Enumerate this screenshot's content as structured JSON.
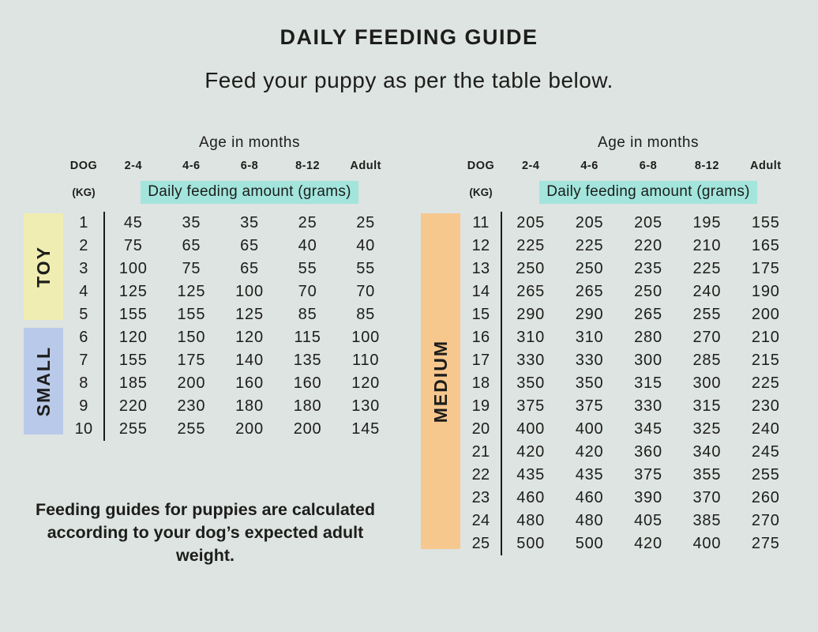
{
  "page": {
    "title": "DAILY FEEDING GUIDE",
    "subtitle": "Feed your puppy as per the table below.",
    "footnote": "Feeding guides for puppies are calculated according to your dog’s expected adult weight."
  },
  "colors": {
    "background": "#dde4e1",
    "amount_highlight": "#a3e5dc",
    "toy_yellow": "#f0edb2",
    "small_blue": "#b9c9e9",
    "medium_orange": "#f7c88e",
    "text": "#1d1d1b"
  },
  "chart_data": [
    {
      "type": "table",
      "age_header": "Age in months",
      "dog_label": "DOG",
      "kg_label": "(KG)",
      "age_columns": [
        "2-4",
        "4-6",
        "6-8",
        "8-12",
        "Adult"
      ],
      "amount_label": "Daily feeding amount (grams)",
      "groups": [
        {
          "label": "TOY",
          "color": "#f0edb2",
          "rows": [
            {
              "kg": 1,
              "values": [
                45,
                35,
                35,
                25,
                25
              ]
            },
            {
              "kg": 2,
              "values": [
                75,
                65,
                65,
                40,
                40
              ]
            },
            {
              "kg": 3,
              "values": [
                100,
                75,
                65,
                55,
                55
              ]
            },
            {
              "kg": 4,
              "values": [
                125,
                125,
                100,
                70,
                70
              ]
            },
            {
              "kg": 5,
              "values": [
                155,
                155,
                125,
                85,
                85
              ]
            }
          ]
        },
        {
          "label": "SMALL",
          "color": "#b9c9e9",
          "rows": [
            {
              "kg": 6,
              "values": [
                120,
                150,
                120,
                115,
                100
              ]
            },
            {
              "kg": 7,
              "values": [
                155,
                175,
                140,
                135,
                110
              ]
            },
            {
              "kg": 8,
              "values": [
                185,
                200,
                160,
                160,
                120
              ]
            },
            {
              "kg": 9,
              "values": [
                220,
                230,
                180,
                180,
                130
              ]
            },
            {
              "kg": 10,
              "values": [
                255,
                255,
                200,
                200,
                145
              ]
            }
          ]
        }
      ]
    },
    {
      "type": "table",
      "age_header": "Age in months",
      "dog_label": "DOG",
      "kg_label": "(KG)",
      "age_columns": [
        "2-4",
        "4-6",
        "6-8",
        "8-12",
        "Adult"
      ],
      "amount_label": "Daily feeding amount (grams)",
      "groups": [
        {
          "label": "MEDIUM",
          "color": "#f7c88e",
          "rows": [
            {
              "kg": 11,
              "values": [
                205,
                205,
                205,
                195,
                155
              ]
            },
            {
              "kg": 12,
              "values": [
                225,
                225,
                220,
                210,
                165
              ]
            },
            {
              "kg": 13,
              "values": [
                250,
                250,
                235,
                225,
                175
              ]
            },
            {
              "kg": 14,
              "values": [
                265,
                265,
                250,
                240,
                190
              ]
            },
            {
              "kg": 15,
              "values": [
                290,
                290,
                265,
                255,
                200
              ]
            },
            {
              "kg": 16,
              "values": [
                310,
                310,
                280,
                270,
                210
              ]
            },
            {
              "kg": 17,
              "values": [
                330,
                330,
                300,
                285,
                215
              ]
            },
            {
              "kg": 18,
              "values": [
                350,
                350,
                315,
                300,
                225
              ]
            },
            {
              "kg": 19,
              "values": [
                375,
                375,
                330,
                315,
                230
              ]
            },
            {
              "kg": 20,
              "values": [
                400,
                400,
                345,
                325,
                240
              ]
            },
            {
              "kg": 21,
              "values": [
                420,
                420,
                360,
                340,
                245
              ]
            },
            {
              "kg": 22,
              "values": [
                435,
                435,
                375,
                355,
                255
              ]
            },
            {
              "kg": 23,
              "values": [
                460,
                460,
                390,
                370,
                260
              ]
            },
            {
              "kg": 24,
              "values": [
                480,
                480,
                405,
                385,
                270
              ]
            },
            {
              "kg": 25,
              "values": [
                500,
                500,
                420,
                400,
                275
              ]
            }
          ]
        }
      ]
    }
  ]
}
